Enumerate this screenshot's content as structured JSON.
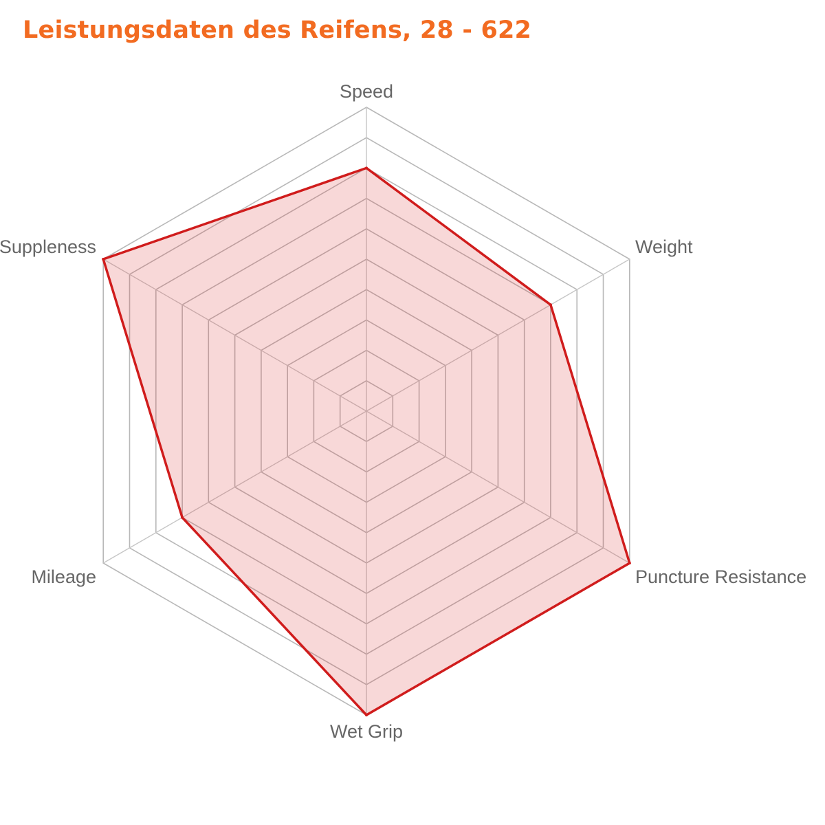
{
  "title": "Leistungsdaten des Reifens, 28 - 622",
  "chart_data": {
    "type": "radar",
    "title": "Leistungsdaten des Reifens, 28 - 622",
    "categories": [
      "Speed",
      "Weight",
      "Puncture Resistance",
      "Wet Grip",
      "Mileage",
      "Suppleness"
    ],
    "scale": {
      "min": 0,
      "max": 10,
      "step": 1
    },
    "grid": true,
    "legend": "none",
    "series": [
      {
        "values": [
          8,
          7,
          10,
          10,
          7,
          10
        ]
      }
    ],
    "colors": {
      "title": "#f26b21",
      "series_line": "#d01c1c",
      "series_fill": "rgba(222, 60, 60, 0.2)",
      "grid": "#b8b8b8",
      "label": "#666666"
    }
  }
}
